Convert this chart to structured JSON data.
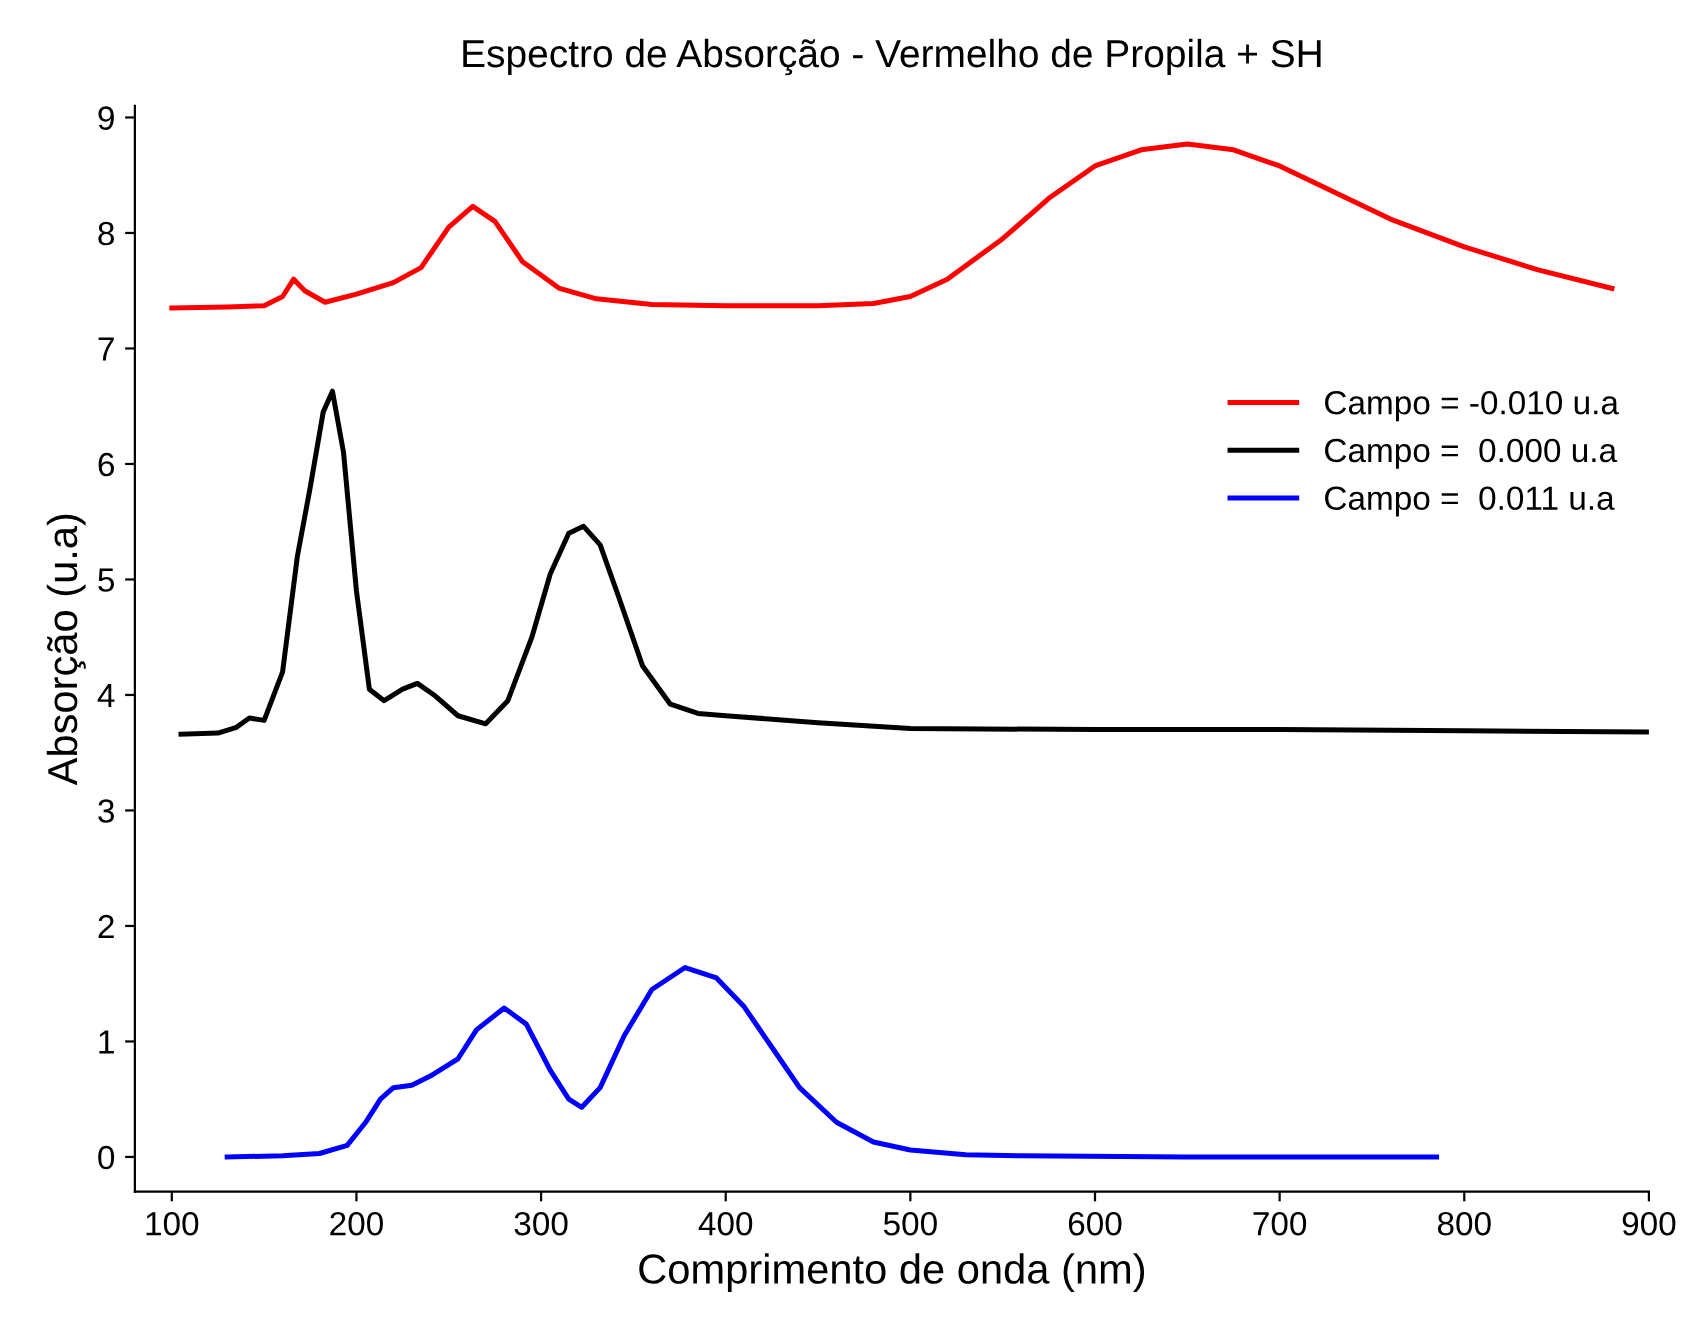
{
  "chart_data": {
    "type": "line",
    "title": "Espectro de Absorção - Vermelho de Propila + SH",
    "xlabel": "Comprimento de onda (nm)",
    "ylabel": "Absorção (u.a)",
    "xlim": [
      80,
      900
    ],
    "ylim": [
      -0.3,
      9.1
    ],
    "xticks": [
      100,
      200,
      300,
      400,
      500,
      600,
      700,
      800,
      900
    ],
    "yticks": [
      0,
      1,
      2,
      3,
      4,
      5,
      6,
      7,
      8,
      9
    ],
    "grid": false,
    "legend": "right",
    "marker": "none",
    "line_style": "solid",
    "series": [
      {
        "name": "Campo = -0.010 u.a",
        "color": "#ff0000",
        "x": [
          100,
          130,
          150,
          160,
          166,
          172,
          183,
          200,
          220,
          235,
          250,
          263,
          275,
          290,
          310,
          330,
          360,
          400,
          450,
          480,
          500,
          520,
          550,
          575,
          600,
          625,
          650,
          675,
          700,
          730,
          760,
          800,
          840,
          880
        ],
        "values": [
          7.35,
          7.36,
          7.37,
          7.45,
          7.6,
          7.5,
          7.4,
          7.47,
          7.57,
          7.7,
          8.05,
          8.23,
          8.1,
          7.75,
          7.52,
          7.43,
          7.38,
          7.37,
          7.37,
          7.39,
          7.45,
          7.6,
          7.95,
          8.3,
          8.58,
          8.72,
          8.77,
          8.72,
          8.58,
          8.35,
          8.12,
          7.88,
          7.68,
          7.52
        ]
      },
      {
        "name": "Campo =  0.000 u.a",
        "color": "#000000",
        "x": [
          105,
          125,
          135,
          142,
          150,
          160,
          168,
          175,
          182,
          187,
          193,
          200,
          207,
          215,
          225,
          233,
          242,
          255,
          270,
          282,
          295,
          305,
          315,
          323,
          332,
          342,
          355,
          370,
          385,
          400,
          450,
          500,
          600,
          700,
          800,
          900
        ],
        "values": [
          3.66,
          3.67,
          3.72,
          3.8,
          3.78,
          4.2,
          5.2,
          5.8,
          6.45,
          6.63,
          6.1,
          4.9,
          4.05,
          3.95,
          4.05,
          4.1,
          4.0,
          3.82,
          3.75,
          3.95,
          4.5,
          5.05,
          5.4,
          5.46,
          5.3,
          4.85,
          4.25,
          3.92,
          3.84,
          3.82,
          3.76,
          3.71,
          3.7,
          3.7,
          3.69,
          3.68
        ]
      },
      {
        "name": "Campo =  0.011 u.a",
        "color": "#0000ff",
        "x": [
          130,
          160,
          180,
          195,
          205,
          213,
          220,
          230,
          240,
          255,
          265,
          280,
          292,
          305,
          315,
          322,
          332,
          345,
          360,
          378,
          395,
          410,
          425,
          440,
          460,
          480,
          500,
          530,
          560,
          650,
          785
        ],
        "values": [
          0,
          0.01,
          0.03,
          0.1,
          0.3,
          0.5,
          0.6,
          0.62,
          0.7,
          0.85,
          1.1,
          1.29,
          1.15,
          0.75,
          0.5,
          0.43,
          0.6,
          1.05,
          1.45,
          1.64,
          1.55,
          1.3,
          0.95,
          0.6,
          0.3,
          0.13,
          0.06,
          0.02,
          0.01,
          0,
          0
        ]
      }
    ]
  }
}
